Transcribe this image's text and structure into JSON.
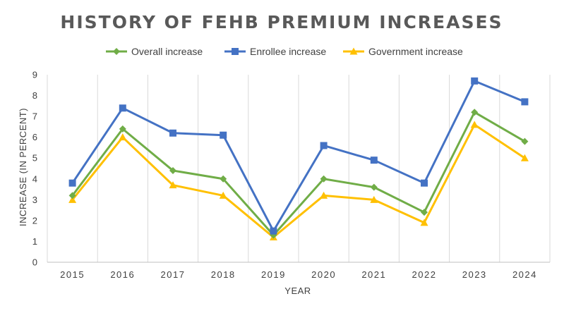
{
  "chart_data": {
    "type": "line",
    "title": "HISTORY OF FEHB PREMIUM INCREASES",
    "xlabel": "YEAR",
    "ylabel": "INCREASE (IN PERCENT)",
    "categories": [
      "2015",
      "2016",
      "2017",
      "2018",
      "2019",
      "2020",
      "2021",
      "2022",
      "2023",
      "2024"
    ],
    "ylim": [
      0,
      9
    ],
    "yticks": [
      "0",
      "1",
      "2",
      "3",
      "4",
      "5",
      "6",
      "7",
      "8",
      "9"
    ],
    "grid": "vertical",
    "legend_position": "top",
    "series": [
      {
        "name": "Overall increase",
        "color": "#70ad47",
        "marker": "diamond",
        "values": [
          3.2,
          6.4,
          4.4,
          4.0,
          1.3,
          4.0,
          3.6,
          2.4,
          7.2,
          5.8
        ]
      },
      {
        "name": "Enrollee increase",
        "color": "#4472c4",
        "marker": "square",
        "values": [
          3.8,
          7.4,
          6.2,
          6.1,
          1.5,
          5.6,
          4.9,
          3.8,
          8.7,
          7.7
        ]
      },
      {
        "name": "Government increase",
        "color": "#ffc000",
        "marker": "triangle",
        "values": [
          3.0,
          6.0,
          3.7,
          3.2,
          1.2,
          3.2,
          3.0,
          1.9,
          6.6,
          5.0
        ]
      }
    ]
  }
}
